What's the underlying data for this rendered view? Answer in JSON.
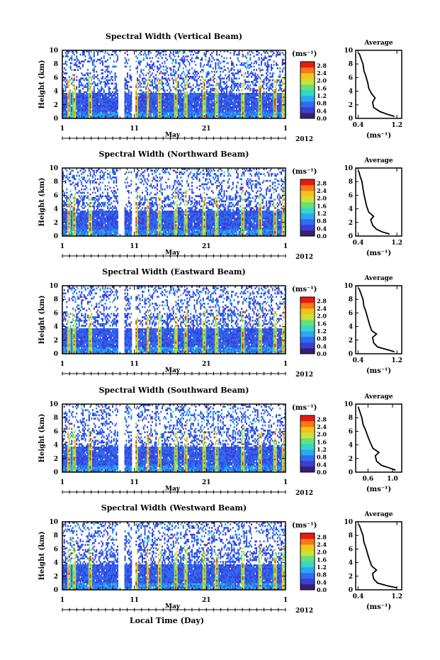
{
  "chart_data": [
    {
      "type": "heatmap",
      "title": "Spectral Width (Vertical Beam)",
      "ylabel": "Height (km)",
      "yticks": [
        "0",
        "2",
        "4",
        "6",
        "8",
        "10"
      ],
      "ylim": [
        0,
        10
      ],
      "xticks": [
        "1",
        "11",
        "21",
        "1"
      ],
      "xlabel_month": "May",
      "year": "2012",
      "colorbar_unit": "(ms⁻¹)",
      "colorbar_ticks": [
        "0.0",
        "0.4",
        "0.8",
        "1.2",
        "1.6",
        "2.0",
        "2.4",
        "2.8"
      ],
      "colorbar_range": [
        0,
        3.0
      ],
      "profile": {
        "title": "Average",
        "xticks": [
          "0.4",
          "1.2"
        ],
        "xlim": [
          0.35,
          1.3
        ],
        "xlabel": "(ms⁻¹)",
        "values": [
          [
            1.15,
            0.3
          ],
          [
            1.0,
            0.6
          ],
          [
            0.85,
            1.0
          ],
          [
            0.72,
            1.6
          ],
          [
            0.7,
            2.4
          ],
          [
            0.75,
            3.0
          ],
          [
            0.68,
            3.6
          ],
          [
            0.62,
            4.4
          ],
          [
            0.6,
            5.2
          ],
          [
            0.56,
            6.2
          ],
          [
            0.52,
            7.0
          ],
          [
            0.5,
            8.0
          ],
          [
            0.46,
            8.8
          ],
          [
            0.42,
            9.6
          ]
        ]
      }
    },
    {
      "type": "heatmap",
      "title": "Spectral Width (Northward Beam)",
      "ylabel": "Height (km)",
      "yticks": [
        "0",
        "2",
        "4",
        "6",
        "8",
        "10"
      ],
      "ylim": [
        0,
        10
      ],
      "xticks": [
        "1",
        "11",
        "21",
        "1"
      ],
      "xlabel_month": "May",
      "year": "2012",
      "colorbar_unit": "(ms⁻¹)",
      "colorbar_ticks": [
        "0.0",
        "0.4",
        "0.8",
        "1.2",
        "1.6",
        "2.0",
        "2.4",
        "2.8"
      ],
      "colorbar_range": [
        0,
        3.0
      ],
      "profile": {
        "title": "Average",
        "xticks": [
          "0.4",
          "1.2"
        ],
        "xlim": [
          0.35,
          1.3
        ],
        "xlabel": "(ms⁻¹)",
        "values": [
          [
            1.05,
            0.3
          ],
          [
            0.9,
            0.6
          ],
          [
            0.78,
            1.0
          ],
          [
            0.7,
            1.6
          ],
          [
            0.66,
            2.4
          ],
          [
            0.72,
            2.9
          ],
          [
            0.62,
            3.5
          ],
          [
            0.58,
            4.3
          ],
          [
            0.55,
            5.2
          ],
          [
            0.52,
            6.2
          ],
          [
            0.5,
            7.0
          ],
          [
            0.48,
            8.0
          ],
          [
            0.44,
            8.8
          ],
          [
            0.41,
            9.6
          ]
        ]
      }
    },
    {
      "type": "heatmap",
      "title": "Spectral Width (Eastward Beam)",
      "ylabel": "Height (km)",
      "yticks": [
        "0",
        "2",
        "4",
        "6",
        "8",
        "10"
      ],
      "ylim": [
        0,
        10
      ],
      "xticks": [
        "1",
        "11",
        "21",
        "1"
      ],
      "xlabel_month": "May",
      "year": "2012",
      "colorbar_unit": "(ms⁻¹)",
      "colorbar_ticks": [
        "0.0",
        "0.4",
        "0.8",
        "1.2",
        "1.6",
        "2.0",
        "2.4",
        "2.8"
      ],
      "colorbar_range": [
        0,
        3.0
      ],
      "profile": {
        "title": "Average",
        "xticks": [
          "0.4",
          "1.2"
        ],
        "xlim": [
          0.35,
          1.3
        ],
        "xlabel": "(ms⁻¹)",
        "values": [
          [
            1.15,
            0.3
          ],
          [
            1.0,
            0.6
          ],
          [
            0.8,
            1.0
          ],
          [
            0.72,
            1.6
          ],
          [
            0.7,
            2.4
          ],
          [
            0.78,
            2.9
          ],
          [
            0.68,
            3.4
          ],
          [
            0.64,
            4.2
          ],
          [
            0.6,
            5.2
          ],
          [
            0.56,
            6.2
          ],
          [
            0.52,
            7.0
          ],
          [
            0.5,
            8.0
          ],
          [
            0.46,
            8.8
          ],
          [
            0.42,
            9.6
          ]
        ]
      }
    },
    {
      "type": "heatmap",
      "title": "Spectral Width (Southward Beam)",
      "ylabel": "Height (km)",
      "yticks": [
        "0",
        "2",
        "4",
        "6",
        "8",
        "10"
      ],
      "ylim": [
        0,
        10
      ],
      "xticks": [
        "1",
        "11",
        "21",
        "1"
      ],
      "xlabel_month": "May",
      "year": "2012",
      "colorbar_unit": "(ms⁻¹)",
      "colorbar_ticks": [
        "0.0",
        "0.4",
        "0.8",
        "1.2",
        "1.6",
        "2.0",
        "2.4",
        "2.8"
      ],
      "colorbar_range": [
        0,
        3.0
      ],
      "profile": {
        "title": "Average",
        "xticks": [
          "0.6",
          "1.0"
        ],
        "xlim": [
          0.4,
          1.15
        ],
        "xlabel": "(ms⁻¹)",
        "values": [
          [
            1.05,
            0.3
          ],
          [
            0.95,
            0.6
          ],
          [
            0.82,
            1.0
          ],
          [
            0.74,
            1.6
          ],
          [
            0.72,
            2.4
          ],
          [
            0.78,
            2.9
          ],
          [
            0.68,
            3.5
          ],
          [
            0.64,
            4.3
          ],
          [
            0.6,
            5.2
          ],
          [
            0.56,
            6.2
          ],
          [
            0.52,
            7.0
          ],
          [
            0.5,
            8.0
          ],
          [
            0.47,
            8.8
          ],
          [
            0.44,
            9.6
          ]
        ]
      }
    },
    {
      "type": "heatmap",
      "title": "Spectral Width (Westward Beam)",
      "ylabel": "Height (km)",
      "yticks": [
        "0",
        "2",
        "4",
        "6",
        "8",
        "10"
      ],
      "ylim": [
        0,
        10
      ],
      "xticks": [
        "1",
        "11",
        "21",
        "1"
      ],
      "xlabel_month": "May",
      "year": "2012",
      "colorbar_unit": "(ms⁻¹)",
      "colorbar_ticks": [
        "0.0",
        "0.4",
        "0.8",
        "1.2",
        "1.6",
        "2.0",
        "2.4",
        "2.8"
      ],
      "colorbar_range": [
        0,
        3.0
      ],
      "profile": {
        "title": "Average",
        "xticks": [
          "0.4",
          "1.2"
        ],
        "xlim": [
          0.35,
          1.3
        ],
        "xlabel": "(ms⁻¹)",
        "values": [
          [
            1.2,
            0.3
          ],
          [
            1.0,
            0.6
          ],
          [
            0.8,
            1.0
          ],
          [
            0.72,
            1.6
          ],
          [
            0.7,
            2.4
          ],
          [
            0.78,
            2.9
          ],
          [
            0.68,
            3.5
          ],
          [
            0.64,
            4.3
          ],
          [
            0.6,
            5.2
          ],
          [
            0.56,
            6.2
          ],
          [
            0.52,
            7.0
          ],
          [
            0.5,
            8.0
          ],
          [
            0.46,
            8.8
          ],
          [
            0.42,
            9.6
          ]
        ]
      }
    }
  ],
  "footer_xlabel": "Local Time (Day)",
  "colors": {
    "scale": [
      "#3b1e70",
      "#3a3fd6",
      "#2f6cf0",
      "#2aa8f0",
      "#36d6c8",
      "#66e07a",
      "#c8e23a",
      "#f5c21c",
      "#f57a18",
      "#e81a12"
    ]
  }
}
